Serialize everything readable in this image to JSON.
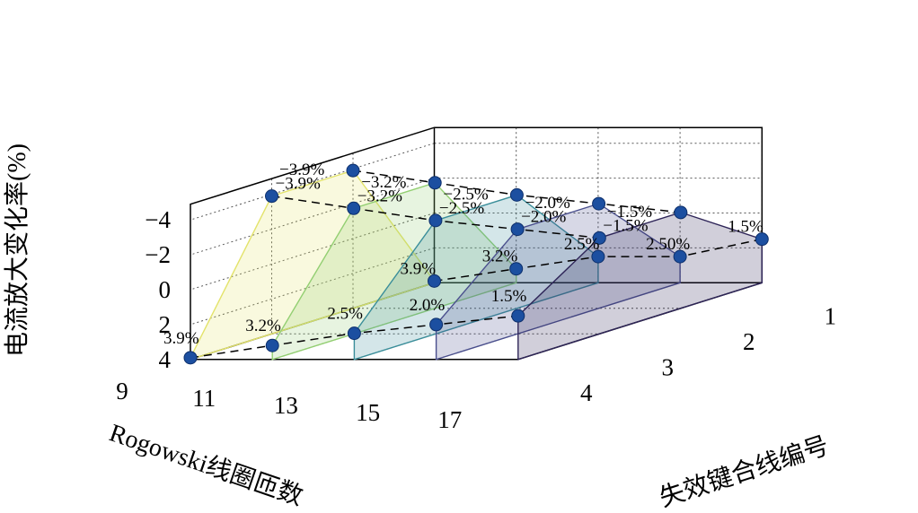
{
  "chart_data": {
    "type": "area",
    "ylabel": "电流放大变化率(%)",
    "xlabel": "Rogowski线圈匝数",
    "zlabel": "失效键合线编号",
    "y_ticks": [
      "−4",
      "−2",
      "0",
      "2",
      "4"
    ],
    "y_tick_values": [
      -4,
      -2,
      0,
      2,
      4
    ],
    "ylim": [
      4,
      -4
    ],
    "x_ticks": [
      "9",
      "11",
      "13",
      "15",
      "17"
    ],
    "z_ticks": [
      "1",
      "2",
      "3",
      "4"
    ],
    "grid": true,
    "series": [
      {
        "turns": 9,
        "color": "#e3e36a",
        "values": [
          3.9,
          -3.9,
          -3.9,
          3.9
        ],
        "labels": [
          "3.9%",
          "−3.9%",
          "−3.9%",
          "3.9%"
        ]
      },
      {
        "turns": 11,
        "color": "#93cf72",
        "values": [
          3.2,
          -3.2,
          -3.2,
          3.2
        ],
        "labels": [
          "3.2%",
          "−3.2%",
          "−3.2%",
          "3.2%"
        ]
      },
      {
        "turns": 13,
        "color": "#3a8e9a",
        "values": [
          2.5,
          -2.5,
          -2.5,
          2.5
        ],
        "labels": [
          "2.5%",
          "−2.5%",
          "−2.5%",
          "2.5%"
        ]
      },
      {
        "turns": 15,
        "color": "#4a4f8d",
        "values": [
          2.5,
          -2.0,
          -2.0,
          2.0
        ],
        "labels": [
          "2.50%",
          "−2.0%",
          "−2.0%",
          "2.0%"
        ]
      },
      {
        "turns": 17,
        "color": "#2e2558",
        "values": [
          1.5,
          -1.5,
          -1.5,
          1.5
        ],
        "labels": [
          "1.5%",
          "−1.5%",
          "−1.5%",
          "1.5%"
        ]
      }
    ],
    "marker_color": "#1c4fa0"
  }
}
